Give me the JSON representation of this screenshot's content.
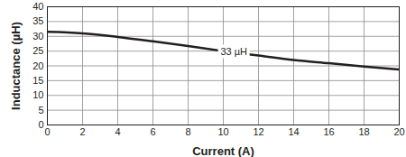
{
  "chart_data": {
    "type": "line",
    "x_label": "Current (A)",
    "y_label": "Inductance (µH)",
    "x": [
      0,
      2,
      4,
      6,
      8,
      10,
      12,
      14,
      16,
      18,
      20
    ],
    "values": [
      31.5,
      31.0,
      29.8,
      28.3,
      26.7,
      25.0,
      23.5,
      22.0,
      20.9,
      19.8,
      18.8
    ],
    "color": "#231f20",
    "xlim": [
      0,
      20
    ],
    "ylim": [
      0,
      40
    ],
    "xticks": [
      0,
      2,
      4,
      6,
      8,
      10,
      12,
      14,
      16,
      18,
      20
    ],
    "yticks": [
      0,
      5,
      10,
      15,
      20,
      25,
      30,
      35,
      40
    ],
    "grid": true,
    "annotations": [
      {
        "text": "33 µH",
        "x": 10.6,
        "y": 24.8
      }
    ]
  }
}
